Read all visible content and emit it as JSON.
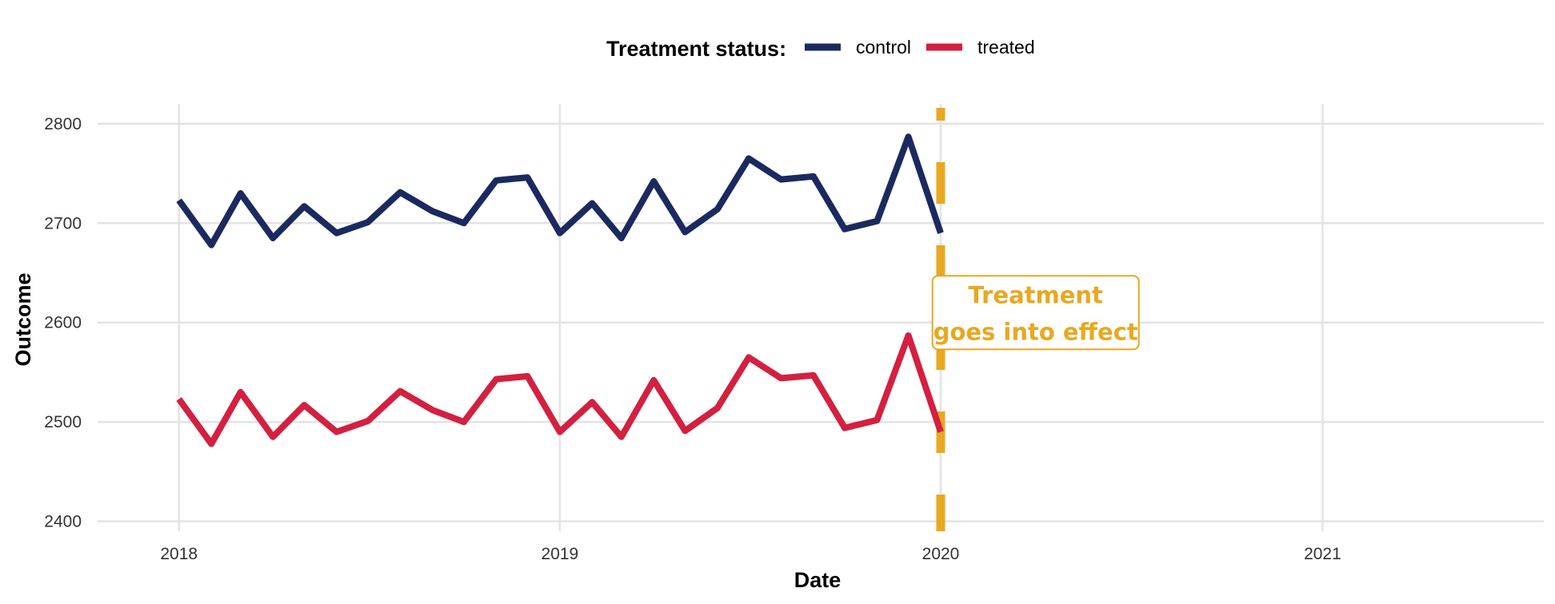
{
  "chart_data": {
    "type": "line",
    "xlabel": "Date",
    "ylabel": "Outcome",
    "legend": {
      "title": "Treatment status:",
      "placement": "top"
    },
    "x_ticks": [
      "2018",
      "2019",
      "2020",
      "2021"
    ],
    "x_tick_dates": [
      "2018-01-01",
      "2019-01-01",
      "2020-01-01",
      "2021-01-01"
    ],
    "xlim": [
      "2017-10-15",
      "2021-08-01"
    ],
    "y_ticks": [
      2400,
      2500,
      2600,
      2700,
      2800
    ],
    "ylim": [
      2390,
      2820
    ],
    "grid": true,
    "x": [
      "2018-01-01",
      "2018-02-01",
      "2018-03-01",
      "2018-04-01",
      "2018-05-01",
      "2018-06-01",
      "2018-07-01",
      "2018-08-01",
      "2018-09-01",
      "2018-10-01",
      "2018-11-01",
      "2018-12-01",
      "2019-01-01",
      "2019-02-01",
      "2019-03-01",
      "2019-04-01",
      "2019-05-01",
      "2019-06-01",
      "2019-07-01",
      "2019-08-01",
      "2019-09-01",
      "2019-10-01",
      "2019-11-01",
      "2019-12-01",
      "2020-01-01"
    ],
    "series": [
      {
        "name": "control",
        "color": "#1b2a5e",
        "values": [
          2723,
          2678,
          2730,
          2685,
          2717,
          2690,
          2701,
          2731,
          2712,
          2700,
          2743,
          2746,
          2690,
          2720,
          2685,
          2742,
          2691,
          2714,
          2765,
          2744,
          2747,
          2694,
          2702,
          2787,
          2690
        ]
      },
      {
        "name": "treated",
        "color": "#d42040",
        "values": [
          2523,
          2478,
          2530,
          2485,
          2517,
          2490,
          2501,
          2531,
          2512,
          2500,
          2543,
          2546,
          2490,
          2520,
          2485,
          2542,
          2491,
          2514,
          2565,
          2544,
          2547,
          2494,
          2502,
          2587,
          2490
        ]
      }
    ],
    "vline": {
      "x": "2020-01-01",
      "color": "#e8a820",
      "style": "dashed"
    },
    "annotation": {
      "lines": [
        "Treatment",
        "goes into effect"
      ],
      "x": "2020-04-01",
      "y": 2610,
      "color": "#e8a820"
    }
  }
}
